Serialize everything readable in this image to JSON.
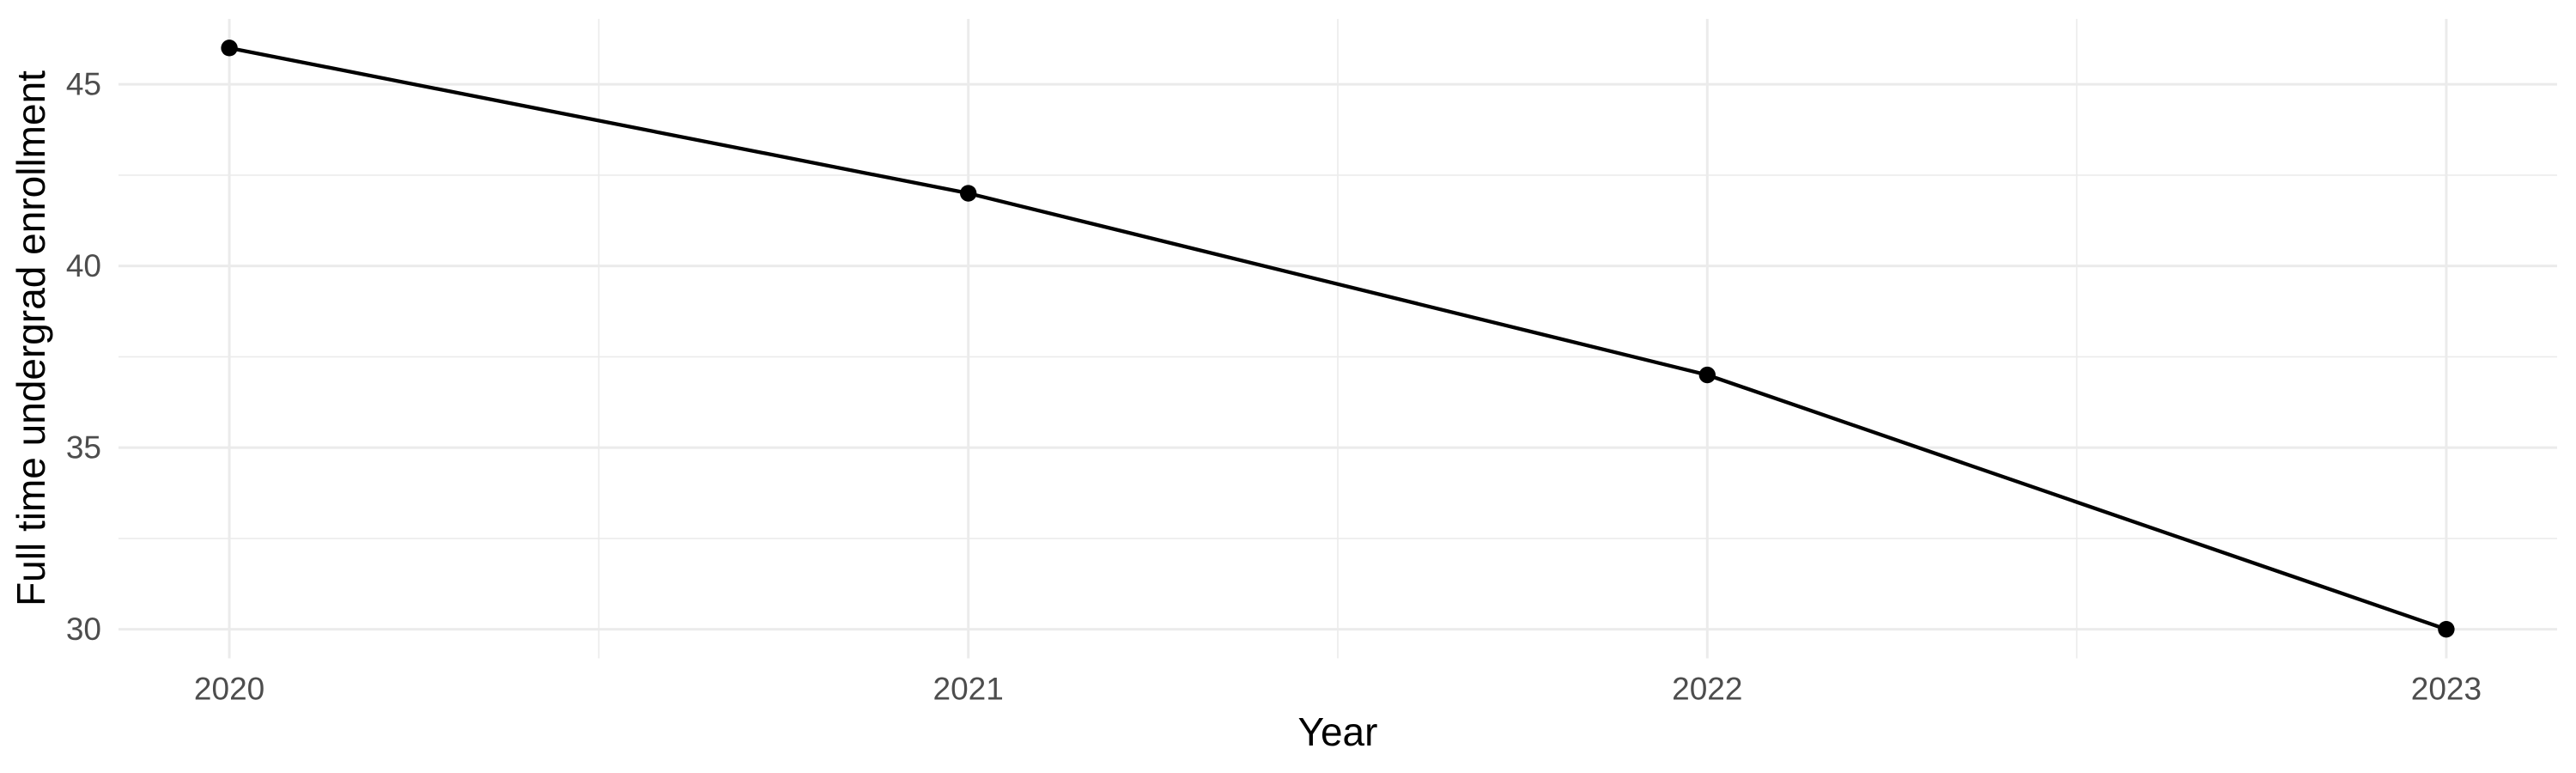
{
  "chart_data": {
    "type": "line",
    "title": "",
    "xlabel": "Year",
    "ylabel": "Full time undergrad enrollment",
    "x": [
      2020,
      2021,
      2022,
      2023
    ],
    "x_tick_labels": [
      "2020",
      "2021",
      "2022",
      "2023"
    ],
    "series": [
      {
        "name": "Full time undergrad enrollment",
        "values": [
          46,
          42,
          37,
          30
        ]
      }
    ],
    "y_ticks": [
      30,
      35,
      40,
      45
    ],
    "y_tick_labels": [
      "30",
      "35",
      "40",
      "45"
    ],
    "y_minor_ticks": [
      32.5,
      37.5,
      42.5
    ],
    "x_minor_ticks": [
      2020.5,
      2021.5,
      2022.5
    ],
    "xlim": [
      2019.85,
      2023.15
    ],
    "ylim": [
      29.2,
      46.8
    ],
    "grid": "on",
    "legend": "none",
    "colors": {
      "line": "#000000",
      "point": "#000000",
      "grid_major": "#EBEBEB",
      "grid_minor": "#EBEBEB",
      "tick_label": "#4D4D4D",
      "axis_title": "#000000",
      "background": "#FFFFFF"
    }
  }
}
